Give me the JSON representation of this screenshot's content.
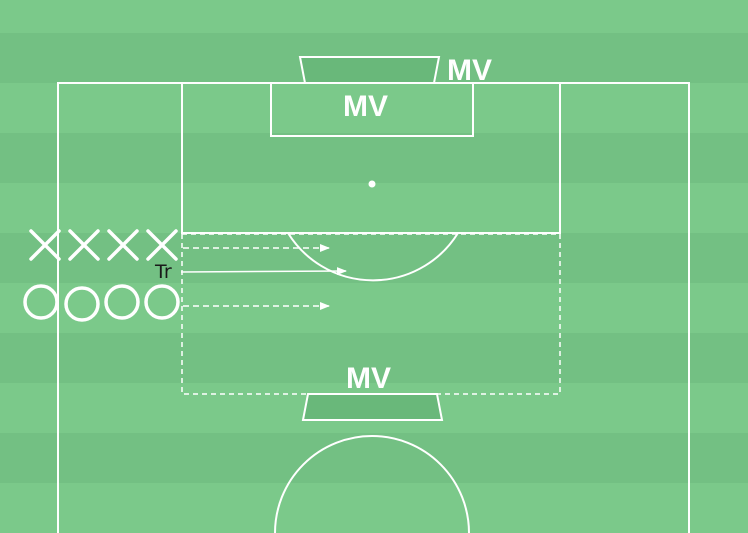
{
  "colors": {
    "stripe_light": "#7bc98a",
    "stripe_dark": "#73c083",
    "line": "#ffffff",
    "goal_fill": "#69b87a",
    "coach_text": "#1a1a1a"
  },
  "labels": {
    "top_goal": "MV",
    "penalty_box": "MV",
    "bottom_goal": "MV",
    "trainer": "Tr"
  },
  "players": {
    "attackers_marker": "cross",
    "attackers_count": 4,
    "defenders_marker": "circle",
    "defenders_count": 4
  },
  "arrows": [
    {
      "name": "attacker-run-arrow",
      "style": "dashed"
    },
    {
      "name": "trainer-pass-arrow",
      "style": "solid"
    },
    {
      "name": "defender-run-arrow",
      "style": "dashed"
    }
  ]
}
